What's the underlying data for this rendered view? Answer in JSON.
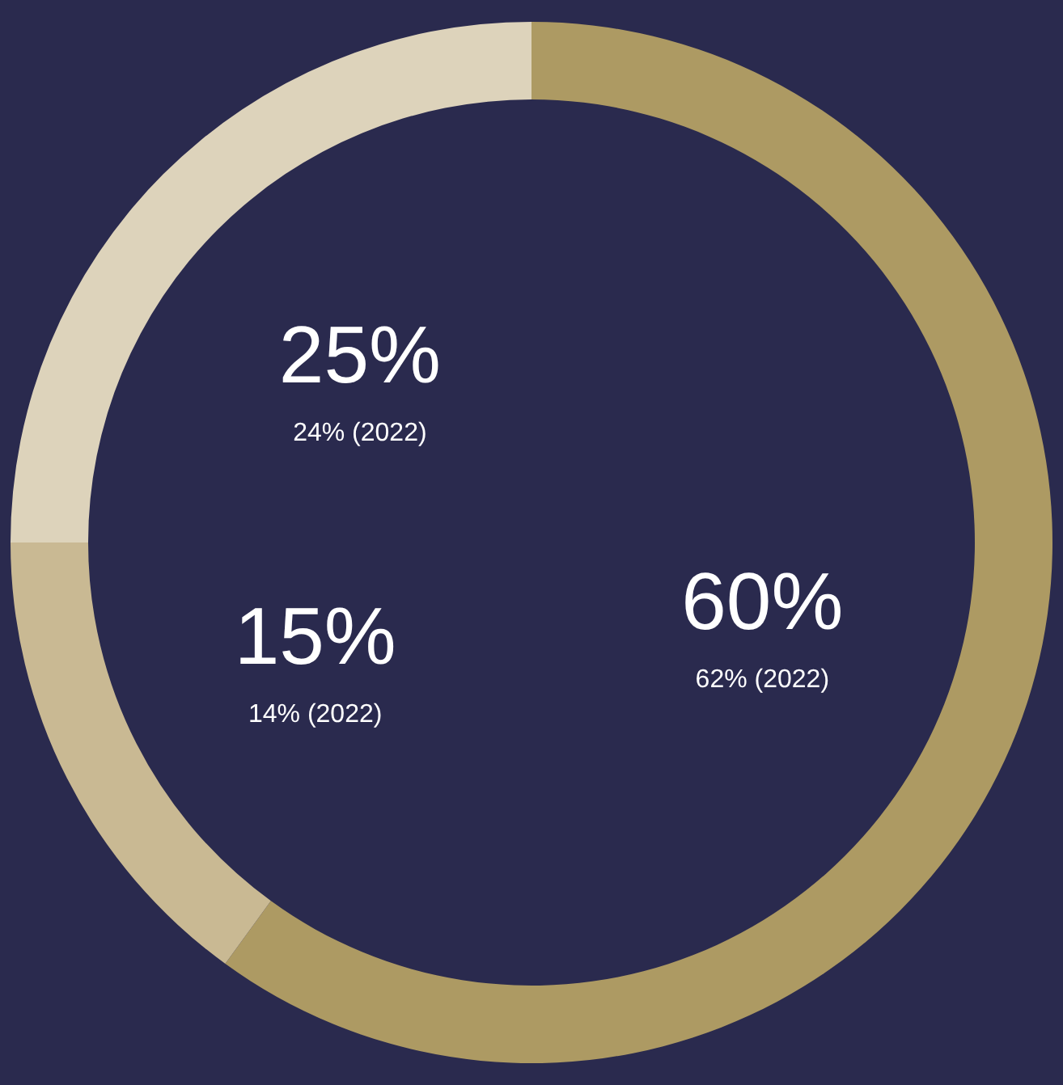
{
  "chart_data": {
    "type": "donut",
    "categories": [
      null,
      null,
      null
    ],
    "values": [
      60,
      15,
      25
    ],
    "colors": [
      "#ad9a63",
      "#c9b993",
      "#ddd3bb"
    ],
    "value_labels": [
      "60%",
      "15%",
      "25%"
    ],
    "annotations": [
      "62% (2022)",
      "14% (2022)",
      "24% (2022)"
    ]
  }
}
